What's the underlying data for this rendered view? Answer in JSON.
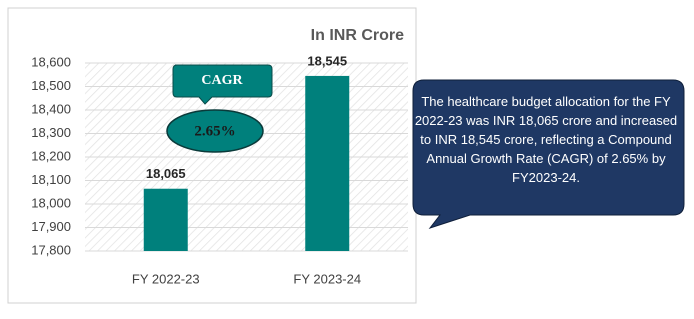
{
  "chart_data": {
    "type": "bar",
    "unit_label": "In INR Crore",
    "categories": [
      "FY 2022-23",
      "FY 2023-24"
    ],
    "values": [
      18065,
      18545
    ],
    "value_labels": [
      "18,065",
      "18,545"
    ],
    "color": "#00807c",
    "ylim": [
      17800,
      18600
    ],
    "yticks": [
      {
        "value": 17800,
        "label": "17,800"
      },
      {
        "value": 17900,
        "label": "17,900"
      },
      {
        "value": 18000,
        "label": "18,000"
      },
      {
        "value": 18100,
        "label": "18,100"
      },
      {
        "value": 18200,
        "label": "18,200"
      },
      {
        "value": 18300,
        "label": "18,300"
      },
      {
        "value": 18400,
        "label": "18,400"
      },
      {
        "value": 18500,
        "label": "18,500"
      },
      {
        "value": 18600,
        "label": "18,600"
      }
    ],
    "grid": true,
    "cagr_label": "CAGR",
    "cagr_value": "2.65%",
    "callout": "The healthcare budget allocation for the FY 2022-23 was INR 18,065 crore and increased to INR 18,545 crore, reflecting a Compound Annual Growth Rate (CAGR) of 2.65% by FY2023-24."
  }
}
